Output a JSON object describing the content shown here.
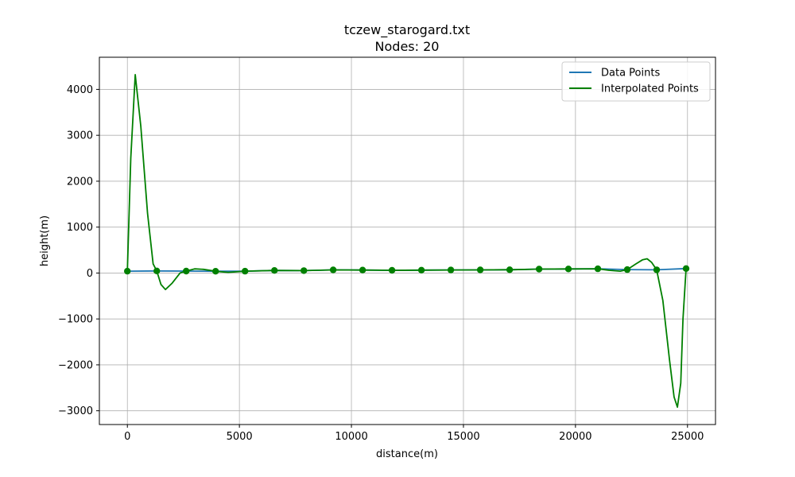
{
  "chart_data": {
    "type": "line",
    "title": "tczew_starogard.txt",
    "subtitle": "Nodes: 20",
    "xlabel": "distance(m)",
    "ylabel": "height(m)",
    "xlim": [
      -1250,
      26250
    ],
    "ylim": [
      -3300,
      4700
    ],
    "xticks": [
      0,
      5000,
      10000,
      15000,
      20000,
      25000
    ],
    "xtick_labels": [
      "0",
      "5000",
      "10000",
      "15000",
      "20000",
      "25000"
    ],
    "yticks": [
      -3000,
      -2000,
      -1000,
      0,
      1000,
      2000,
      3000,
      4000
    ],
    "ytick_labels": [
      "−3000",
      "−2000",
      "−1000",
      "0",
      "1000",
      "2000",
      "3000",
      "4000"
    ],
    "grid": true,
    "legend_position": "top-right",
    "series": [
      {
        "name": "Data Points",
        "color": "#1f77b4",
        "x": [
          0,
          1312,
          2625,
          3937,
          5250,
          6562,
          7875,
          9187,
          10500,
          11812,
          13125,
          14437,
          15750,
          17062,
          18375,
          19687,
          21000,
          22312,
          23625,
          24937
        ],
        "y": [
          40,
          45,
          42,
          38,
          40,
          55,
          52,
          68,
          65,
          60,
          63,
          66,
          68,
          72,
          85,
          88,
          92,
          75,
          70,
          98
        ]
      },
      {
        "name": "Interpolated Points",
        "color": "#008000",
        "x": [
          0,
          150,
          350,
          600,
          900,
          1150,
          1312,
          1500,
          1700,
          2000,
          2350,
          2625,
          3000,
          3400,
          3937,
          4500,
          5250,
          6562,
          7875,
          9187,
          10500,
          11812,
          13125,
          14437,
          15750,
          17062,
          18375,
          19687,
          21000,
          21500,
          22000,
          22312,
          22700,
          23000,
          23200,
          23400,
          23625,
          23900,
          24200,
          24400,
          24550,
          24700,
          24800,
          24937
        ],
        "y": [
          40,
          2500,
          4320,
          3200,
          1300,
          200,
          45,
          -250,
          -360,
          -220,
          0,
          42,
          90,
          80,
          38,
          15,
          40,
          55,
          52,
          68,
          65,
          60,
          63,
          66,
          68,
          72,
          85,
          88,
          92,
          60,
          40,
          75,
          200,
          290,
          310,
          230,
          70,
          -600,
          -1900,
          -2700,
          -2920,
          -2400,
          -1000,
          98
        ]
      }
    ],
    "markers": {
      "color": "#008000",
      "x": [
        0,
        1312,
        2625,
        3937,
        5250,
        6562,
        7875,
        9187,
        10500,
        11812,
        13125,
        14437,
        15750,
        17062,
        18375,
        19687,
        21000,
        22312,
        23625,
        24937
      ],
      "y": [
        40,
        45,
        42,
        38,
        40,
        55,
        52,
        68,
        65,
        60,
        63,
        66,
        68,
        72,
        85,
        88,
        92,
        75,
        70,
        98
      ]
    }
  }
}
